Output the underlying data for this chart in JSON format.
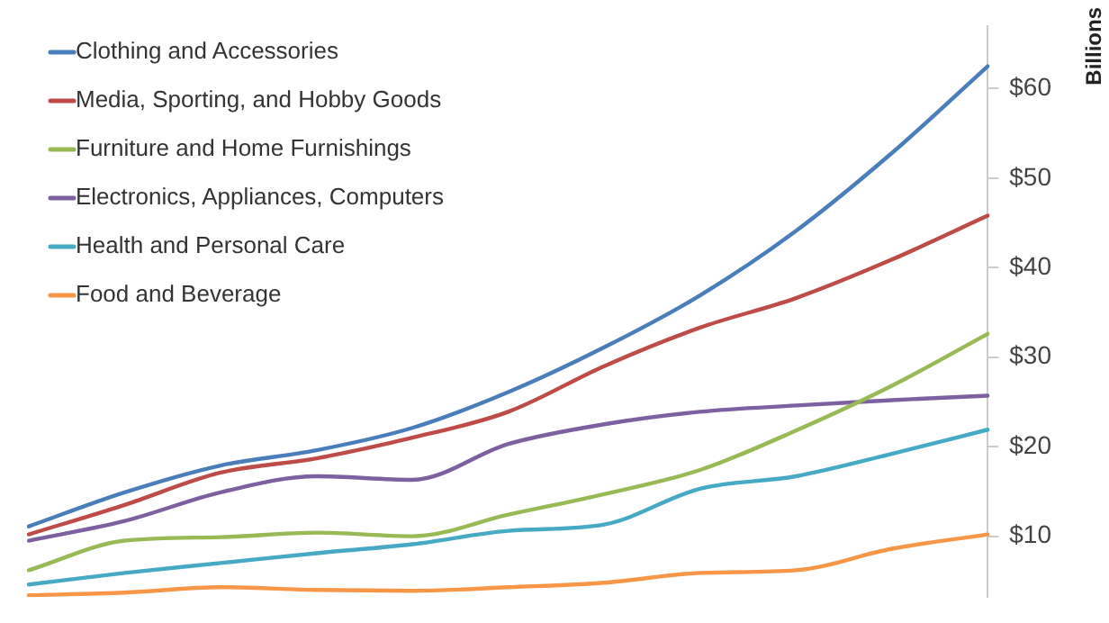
{
  "chart_data": {
    "type": "line",
    "ylabel": "Billions",
    "categories": [
      null,
      null,
      null,
      null,
      null,
      null,
      null,
      null,
      null,
      null,
      null
    ],
    "series": [
      {
        "name": "Clothing and Accessories",
        "color": "#4a7ebb",
        "values": [
          11.1,
          14.9,
          17.9,
          19.6,
          22.1,
          26.1,
          31.1,
          36.9,
          44.1,
          52.8,
          62.5
        ]
      },
      {
        "name": "Media, Sporting, and Hobby Goods",
        "color": "#be4b48",
        "values": [
          10.2,
          13.5,
          17.1,
          18.7,
          21.0,
          23.9,
          29.0,
          33.3,
          36.6,
          40.9,
          45.8
        ]
      },
      {
        "name": "Furniture and Home Furnishings",
        "color": "#98b954",
        "values": [
          6.2,
          9.5,
          9.9,
          10.4,
          10.0,
          12.4,
          14.7,
          17.4,
          21.8,
          26.8,
          32.6
        ]
      },
      {
        "name": "Electronics, Appliances, Computers",
        "color": "#7d60a0",
        "values": [
          9.5,
          11.7,
          14.9,
          16.7,
          16.3,
          20.3,
          22.5,
          23.9,
          24.6,
          25.2,
          25.7
        ]
      },
      {
        "name": "Health and Personal Care",
        "color": "#46aac5",
        "values": [
          4.6,
          5.9,
          7.0,
          8.1,
          9.1,
          10.6,
          11.3,
          15.3,
          16.7,
          19.2,
          21.9
        ]
      },
      {
        "name": "Food and Beverage",
        "color": "#f79646",
        "values": [
          3.4,
          3.7,
          4.3,
          4.0,
          3.9,
          4.3,
          4.8,
          5.9,
          6.2,
          8.6,
          10.2
        ]
      }
    ],
    "ylim": [
      3.2,
      67
    ],
    "yticks": [
      {
        "value": 10,
        "label": "$10"
      },
      {
        "value": 20,
        "label": "$20"
      },
      {
        "value": 30,
        "label": "$30"
      },
      {
        "value": 40,
        "label": "$40"
      },
      {
        "value": 50,
        "label": "$50"
      },
      {
        "value": 60,
        "label": "$60"
      }
    ],
    "tick_labels": "y",
    "grid": false,
    "legend": "top left",
    "marker": "none",
    "line_style": "solid"
  }
}
